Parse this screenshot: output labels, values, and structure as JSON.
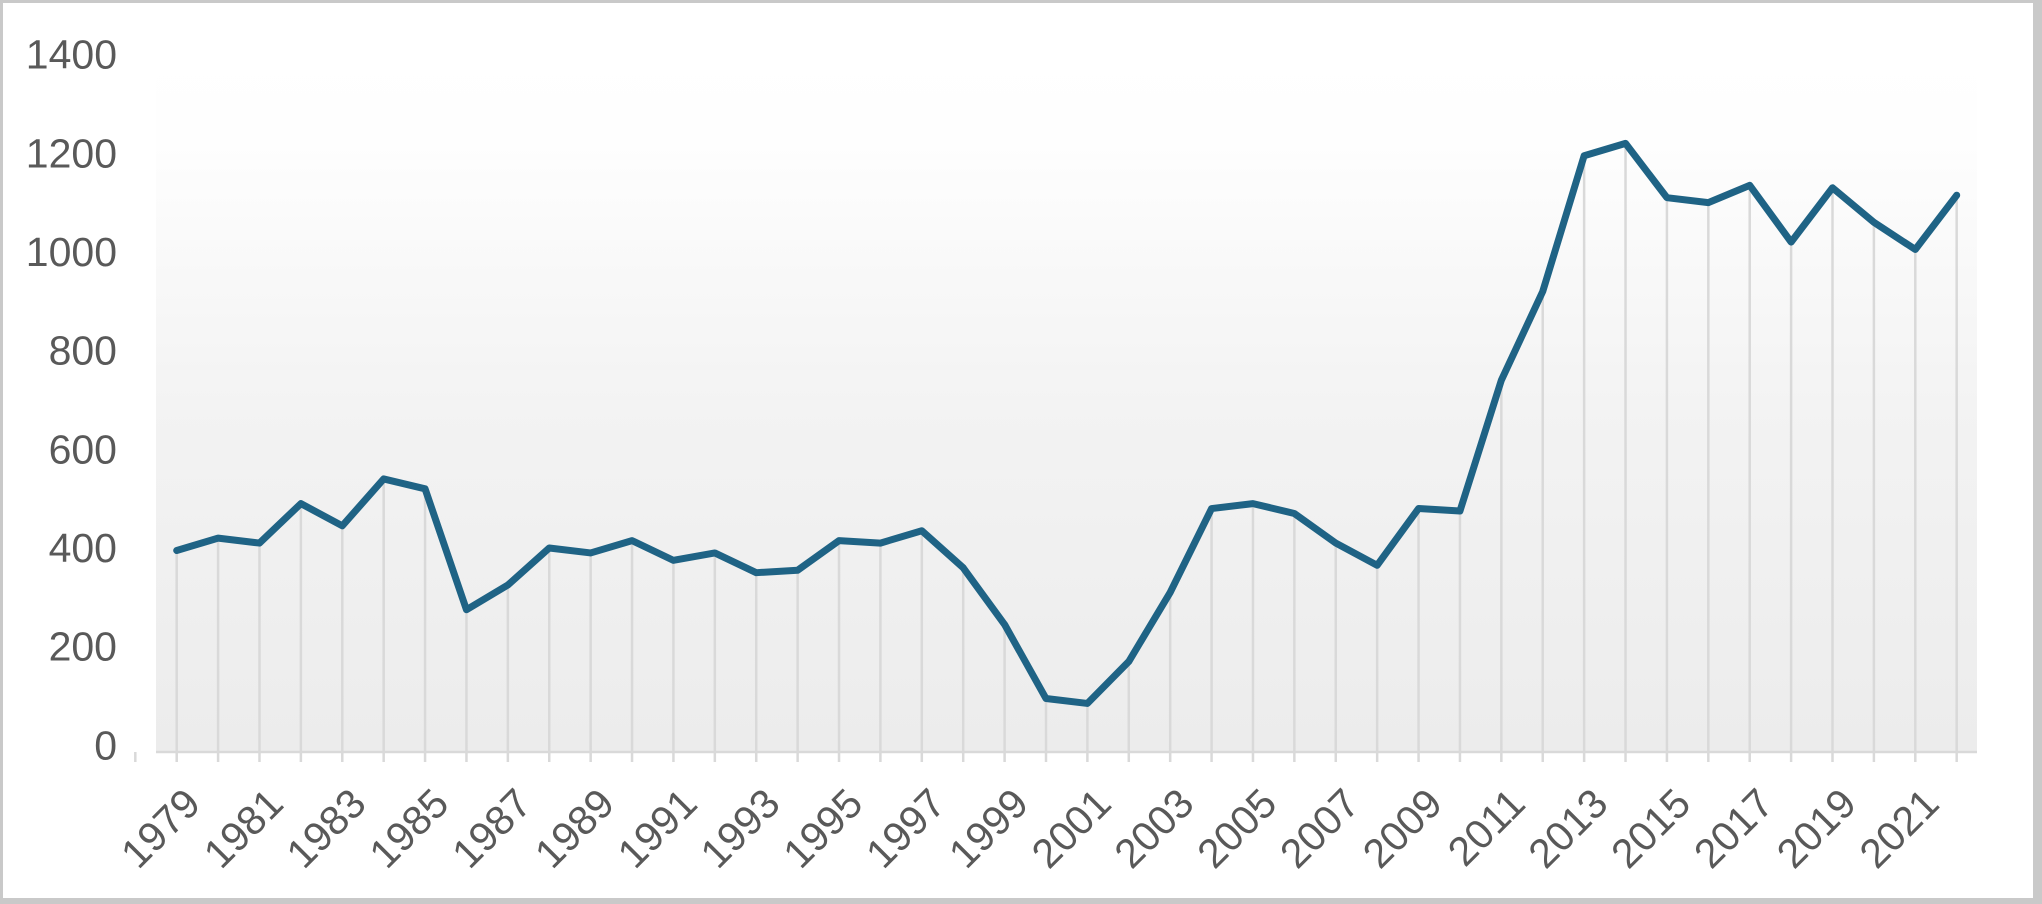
{
  "chart_data": {
    "type": "line",
    "title": "",
    "xlabel": "",
    "ylabel": "",
    "x": [
      1979,
      1980,
      1981,
      1982,
      1983,
      1984,
      1985,
      1986,
      1987,
      1988,
      1989,
      1990,
      1991,
      1992,
      1993,
      1994,
      1995,
      1996,
      1997,
      1998,
      1999,
      2000,
      2001,
      2002,
      2003,
      2004,
      2005,
      2006,
      2007,
      2008,
      2009,
      2010,
      2011,
      2012,
      2013,
      2014,
      2015,
      2016,
      2017,
      2018,
      2019,
      2020,
      2021,
      2022
    ],
    "values": [
      395,
      420,
      410,
      490,
      445,
      540,
      520,
      275,
      325,
      400,
      390,
      415,
      375,
      390,
      350,
      355,
      415,
      410,
      435,
      360,
      245,
      95,
      85,
      170,
      310,
      480,
      490,
      470,
      410,
      365,
      480,
      475,
      740,
      920,
      1195,
      1220,
      1110,
      1100,
      1135,
      1020,
      1130,
      1060,
      1005,
      1115
    ],
    "x_tick_labels": [
      "1979",
      "1981",
      "1983",
      "1985",
      "1987",
      "1989",
      "1991",
      "1993",
      "1995",
      "1997",
      "1999",
      "2001",
      "2003",
      "2005",
      "2007",
      "2009",
      "2011",
      "2013",
      "2015",
      "2017",
      "2019",
      "2021"
    ],
    "y_tick_labels": [
      "0",
      "200",
      "400",
      "600",
      "800",
      "1000",
      "1200",
      "1400"
    ],
    "y_ticks": [
      0,
      200,
      400,
      600,
      800,
      1000,
      1200,
      1400
    ],
    "ylim": [
      0,
      1400
    ],
    "legend": "none",
    "grid": "vertical-drop-lines",
    "x_label_rotation_deg": 45,
    "colors": {
      "line": "#1f6385",
      "axis": "#d9d9d9",
      "drop_line": "#d9d9d9",
      "tick_label": "#595959",
      "plot_bg_top": "#ffffff",
      "plot_bg_bottom": "#ececec",
      "frame": "#c9c9c9",
      "page_bg": "#ffffff"
    }
  }
}
